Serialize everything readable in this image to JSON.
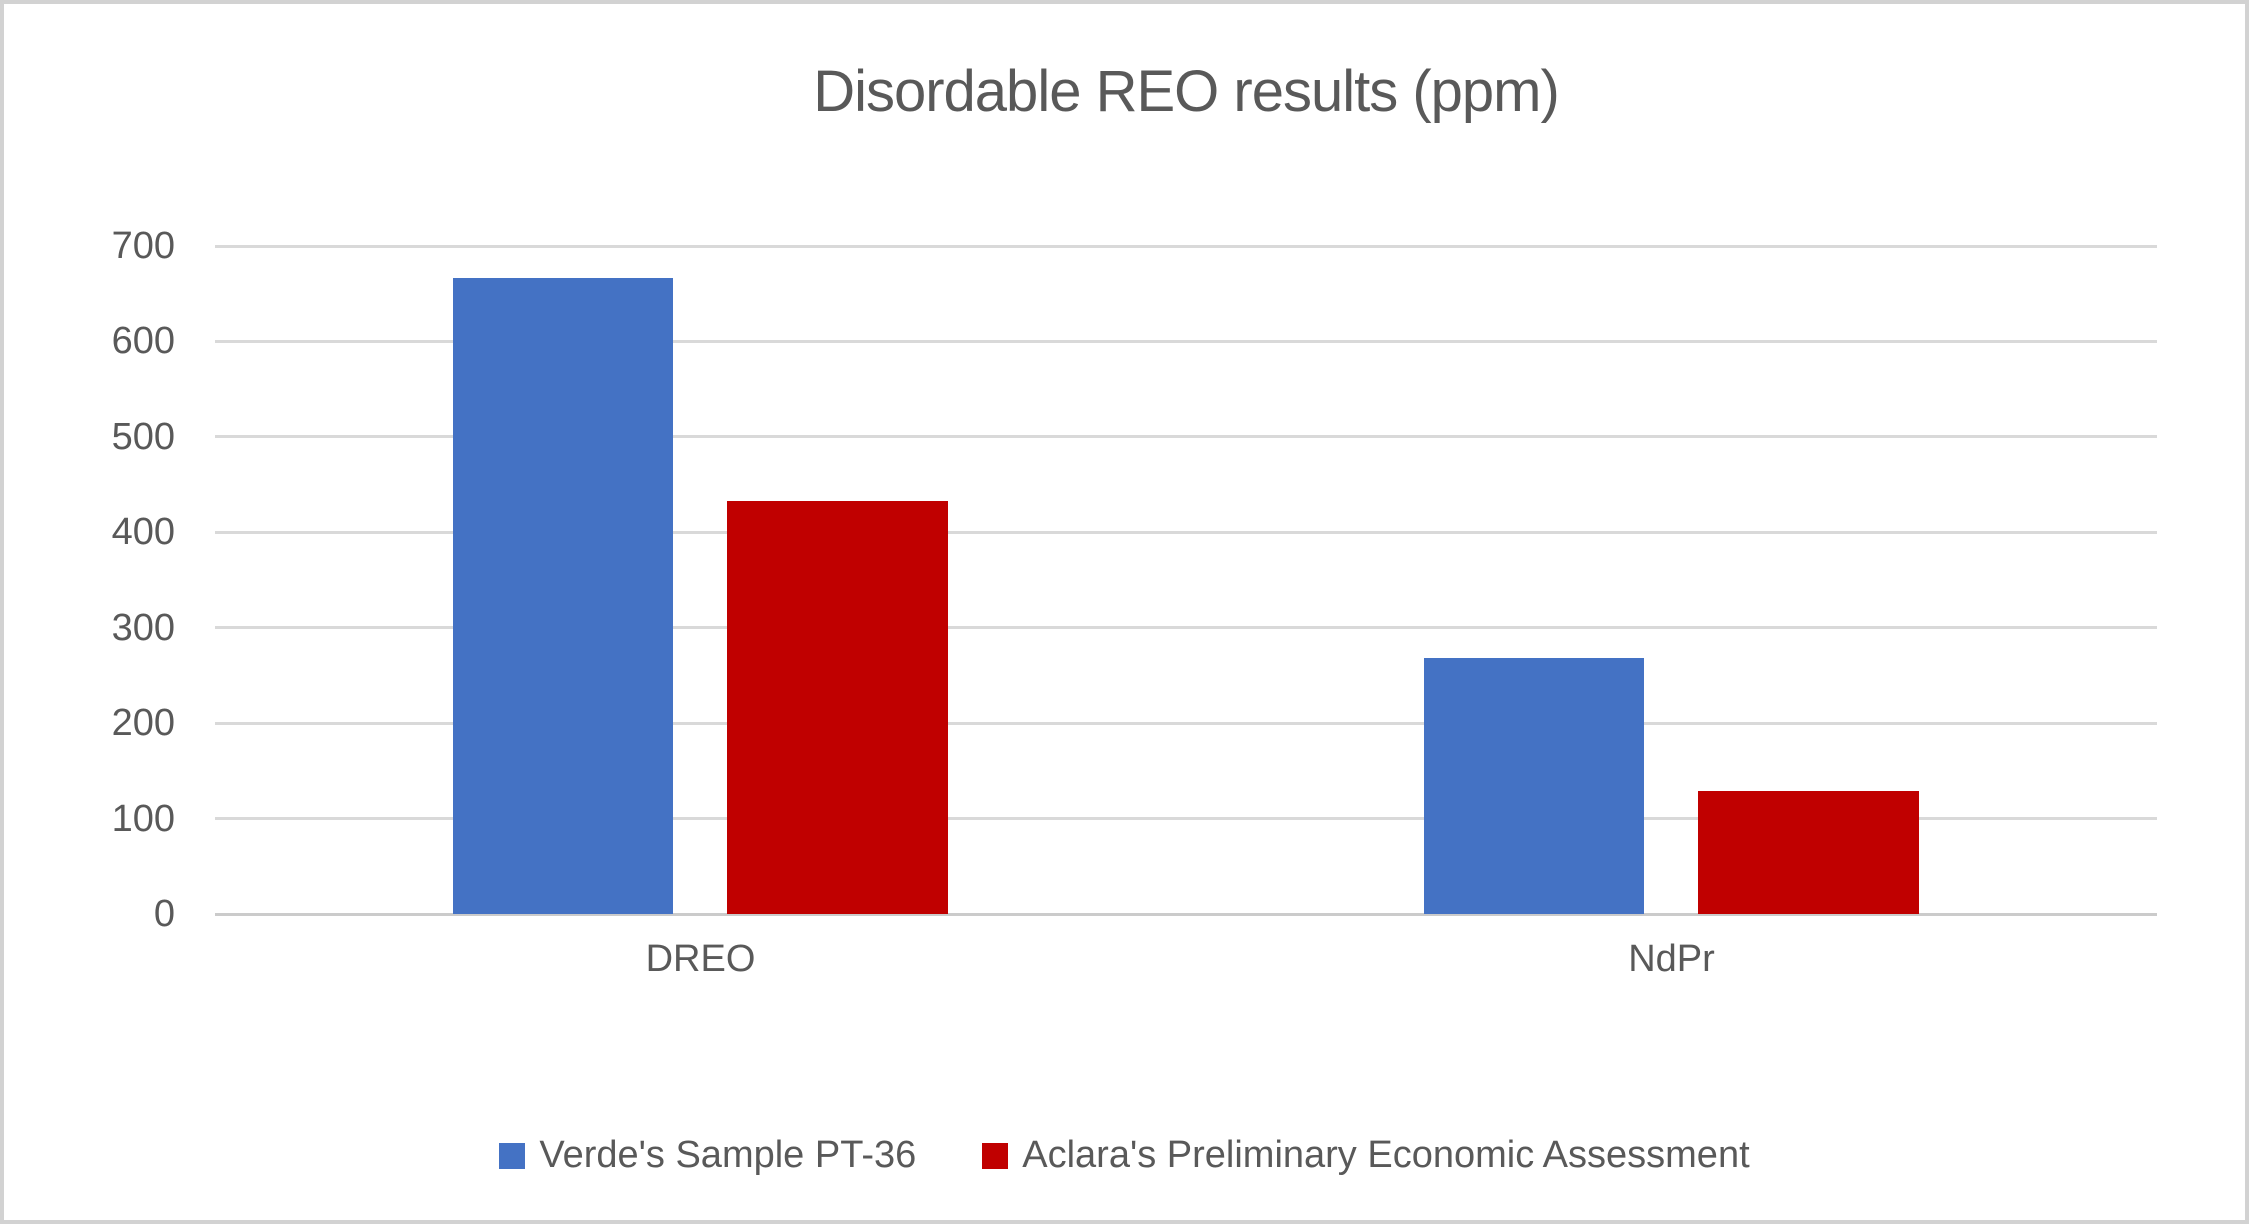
{
  "chart_data": {
    "type": "bar",
    "title": "Disordable REO results (ppm)",
    "categories": [
      "DREO",
      "NdPr"
    ],
    "series": [
      {
        "name": "Verde's Sample PT-36",
        "color": "#4472C4",
        "values": [
          667,
          268
        ]
      },
      {
        "name": "Aclara's  Preliminary Economic Assessment",
        "color": "#C00000",
        "values": [
          433,
          129
        ]
      }
    ],
    "xlabel": "",
    "ylabel": "",
    "ylim": [
      0,
      700
    ],
    "yticks": [
      0,
      100,
      200,
      300,
      400,
      500,
      600,
      700
    ],
    "grid": true,
    "legend_position": "bottom"
  },
  "style": {
    "text_color": "#595959",
    "gridline_color": "#d9d9d9",
    "axis_line_color": "#cbcbcb",
    "border_color": "#d2d2d2",
    "background": "#ffffff"
  }
}
